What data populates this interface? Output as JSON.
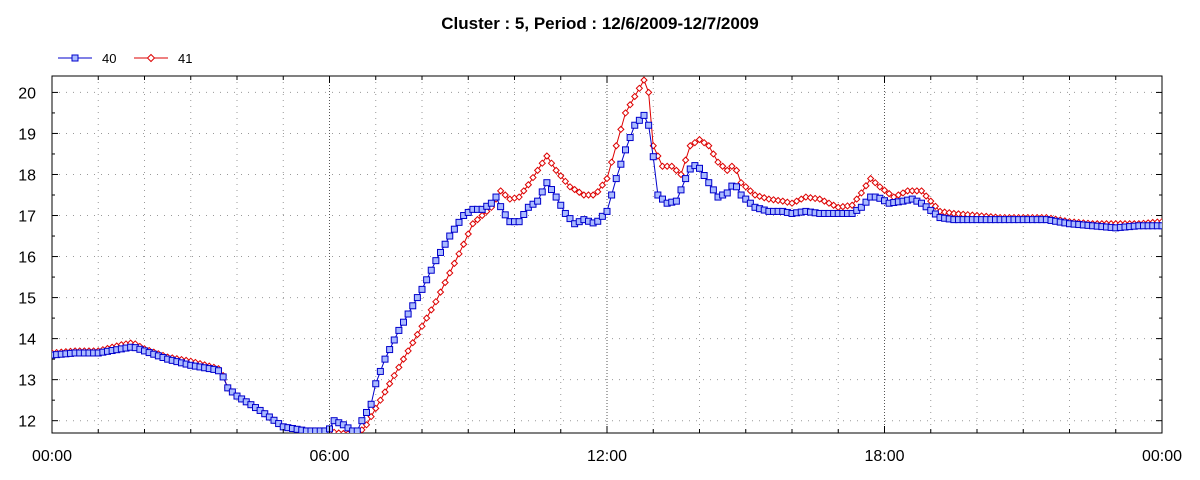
{
  "chart_data": {
    "type": "line",
    "title": "Cluster : 5, Period : 12/6/2009-12/7/2009",
    "xlabel": "",
    "ylabel": "",
    "x_range_hours": [
      0,
      24
    ],
    "ylim": [
      11.7,
      20.4
    ],
    "x_ticks": [
      "00:00",
      "06:00",
      "12:00",
      "18:00",
      "00:00"
    ],
    "x_tick_hours": [
      0,
      6,
      12,
      18,
      24
    ],
    "y_ticks": [
      12,
      13,
      14,
      15,
      16,
      17,
      18,
      19,
      20
    ],
    "grid": true,
    "legend_position": "top-left",
    "colors": {
      "40": "#0000cc",
      "41": "#dd0000",
      "marker_fill_40": "#aabbff"
    },
    "series": [
      {
        "name": "40",
        "marker": "square",
        "points": [
          [
            0.0,
            13.6
          ],
          [
            0.5,
            13.65
          ],
          [
            1.0,
            13.65
          ],
          [
            1.5,
            13.75
          ],
          [
            1.75,
            13.8
          ],
          [
            2.0,
            13.7
          ],
          [
            2.5,
            13.5
          ],
          [
            3.0,
            13.35
          ],
          [
            3.5,
            13.25
          ],
          [
            3.65,
            13.2
          ],
          [
            3.8,
            12.8
          ],
          [
            4.0,
            12.6
          ],
          [
            4.5,
            12.25
          ],
          [
            5.0,
            11.85
          ],
          [
            5.5,
            11.75
          ],
          [
            5.9,
            11.75
          ],
          [
            6.0,
            11.8
          ],
          [
            6.1,
            12.0
          ],
          [
            6.3,
            11.9
          ],
          [
            6.5,
            11.75
          ],
          [
            6.6,
            11.75
          ],
          [
            6.7,
            12.0
          ],
          [
            6.9,
            12.4
          ],
          [
            7.0,
            12.9
          ],
          [
            7.2,
            13.5
          ],
          [
            7.5,
            14.2
          ],
          [
            7.8,
            14.8
          ],
          [
            8.0,
            15.2
          ],
          [
            8.3,
            15.9
          ],
          [
            8.6,
            16.5
          ],
          [
            8.9,
            17.0
          ],
          [
            9.1,
            17.15
          ],
          [
            9.3,
            17.15
          ],
          [
            9.5,
            17.3
          ],
          [
            9.6,
            17.45
          ],
          [
            9.75,
            17.1
          ],
          [
            9.9,
            16.85
          ],
          [
            10.1,
            16.85
          ],
          [
            10.3,
            17.2
          ],
          [
            10.5,
            17.35
          ],
          [
            10.7,
            17.8
          ],
          [
            10.85,
            17.55
          ],
          [
            11.1,
            17.05
          ],
          [
            11.3,
            16.8
          ],
          [
            11.5,
            16.9
          ],
          [
            11.75,
            16.8
          ],
          [
            12.0,
            17.1
          ],
          [
            12.2,
            17.9
          ],
          [
            12.4,
            18.6
          ],
          [
            12.6,
            19.2
          ],
          [
            12.85,
            19.5
          ],
          [
            12.95,
            18.9
          ],
          [
            13.1,
            17.5
          ],
          [
            13.3,
            17.3
          ],
          [
            13.5,
            17.35
          ],
          [
            13.7,
            17.9
          ],
          [
            13.85,
            18.25
          ],
          [
            14.0,
            18.15
          ],
          [
            14.2,
            17.8
          ],
          [
            14.4,
            17.45
          ],
          [
            14.6,
            17.55
          ],
          [
            14.75,
            17.8
          ],
          [
            14.9,
            17.5
          ],
          [
            15.2,
            17.2
          ],
          [
            15.5,
            17.1
          ],
          [
            15.8,
            17.1
          ],
          [
            16.0,
            17.05
          ],
          [
            16.3,
            17.1
          ],
          [
            16.6,
            17.05
          ],
          [
            17.0,
            17.05
          ],
          [
            17.3,
            17.05
          ],
          [
            17.5,
            17.2
          ],
          [
            17.7,
            17.45
          ],
          [
            17.85,
            17.45
          ],
          [
            18.1,
            17.3
          ],
          [
            18.4,
            17.35
          ],
          [
            18.6,
            17.4
          ],
          [
            18.8,
            17.3
          ],
          [
            19.2,
            16.95
          ],
          [
            19.5,
            16.9
          ],
          [
            20.0,
            16.9
          ],
          [
            20.5,
            16.9
          ],
          [
            21.0,
            16.9
          ],
          [
            21.5,
            16.9
          ],
          [
            22.0,
            16.8
          ],
          [
            22.5,
            16.75
          ],
          [
            23.0,
            16.7
          ],
          [
            23.5,
            16.75
          ],
          [
            24.0,
            16.75
          ]
        ]
      },
      {
        "name": "41",
        "marker": "diamond",
        "points": [
          [
            0.0,
            13.65
          ],
          [
            0.5,
            13.7
          ],
          [
            1.0,
            13.7
          ],
          [
            1.5,
            13.85
          ],
          [
            1.75,
            13.9
          ],
          [
            2.0,
            13.75
          ],
          [
            2.5,
            13.55
          ],
          [
            3.0,
            13.45
          ],
          [
            3.5,
            13.3
          ],
          [
            3.65,
            13.25
          ],
          [
            3.8,
            12.8
          ],
          [
            4.0,
            12.6
          ],
          [
            4.5,
            12.25
          ],
          [
            5.0,
            11.85
          ],
          [
            5.5,
            11.75
          ],
          [
            5.9,
            11.75
          ],
          [
            6.2,
            11.7
          ],
          [
            6.6,
            11.65
          ],
          [
            6.8,
            11.9
          ],
          [
            7.0,
            12.3
          ],
          [
            7.3,
            12.9
          ],
          [
            7.6,
            13.5
          ],
          [
            8.0,
            14.3
          ],
          [
            8.3,
            14.9
          ],
          [
            8.6,
            15.6
          ],
          [
            8.9,
            16.3
          ],
          [
            9.1,
            16.8
          ],
          [
            9.3,
            17.0
          ],
          [
            9.5,
            17.2
          ],
          [
            9.7,
            17.6
          ],
          [
            9.9,
            17.4
          ],
          [
            10.1,
            17.45
          ],
          [
            10.3,
            17.75
          ],
          [
            10.5,
            18.1
          ],
          [
            10.7,
            18.45
          ],
          [
            10.9,
            18.1
          ],
          [
            11.2,
            17.7
          ],
          [
            11.5,
            17.5
          ],
          [
            11.75,
            17.5
          ],
          [
            12.0,
            17.9
          ],
          [
            12.2,
            18.7
          ],
          [
            12.4,
            19.5
          ],
          [
            12.6,
            19.9
          ],
          [
            12.8,
            20.3
          ],
          [
            12.9,
            20.0
          ],
          [
            13.0,
            18.7
          ],
          [
            13.2,
            18.2
          ],
          [
            13.4,
            18.2
          ],
          [
            13.6,
            18.0
          ],
          [
            13.8,
            18.7
          ],
          [
            14.0,
            18.85
          ],
          [
            14.2,
            18.7
          ],
          [
            14.4,
            18.3
          ],
          [
            14.6,
            18.1
          ],
          [
            14.75,
            18.25
          ],
          [
            14.9,
            17.8
          ],
          [
            15.2,
            17.5
          ],
          [
            15.5,
            17.4
          ],
          [
            15.8,
            17.35
          ],
          [
            16.0,
            17.3
          ],
          [
            16.3,
            17.45
          ],
          [
            16.6,
            17.4
          ],
          [
            17.0,
            17.2
          ],
          [
            17.3,
            17.25
          ],
          [
            17.5,
            17.55
          ],
          [
            17.7,
            17.9
          ],
          [
            17.9,
            17.7
          ],
          [
            18.2,
            17.45
          ],
          [
            18.5,
            17.6
          ],
          [
            18.8,
            17.6
          ],
          [
            19.2,
            17.1
          ],
          [
            19.5,
            17.05
          ],
          [
            20.0,
            17.0
          ],
          [
            20.5,
            16.95
          ],
          [
            21.0,
            16.95
          ],
          [
            21.5,
            16.95
          ],
          [
            22.0,
            16.85
          ],
          [
            22.5,
            16.8
          ],
          [
            23.0,
            16.8
          ],
          [
            23.5,
            16.8
          ],
          [
            24.0,
            16.85
          ]
        ]
      }
    ]
  }
}
